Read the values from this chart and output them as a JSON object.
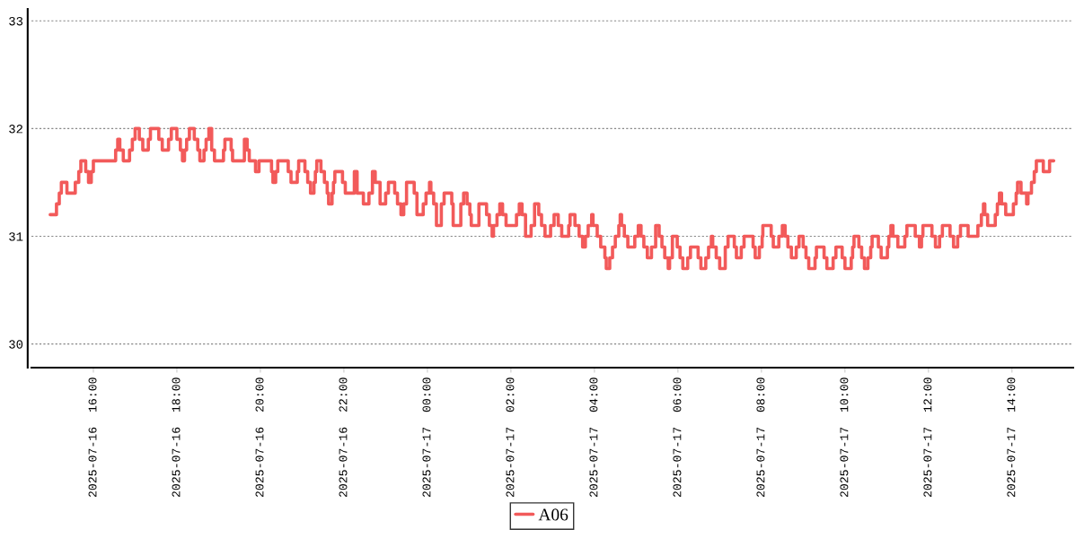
{
  "chart_data": {
    "type": "step",
    "xlim": [
      "2025-07-16T14:31",
      "2025-07-17T15:28"
    ],
    "ylim": [
      29.78,
      33.11
    ],
    "yticks": [
      30,
      31,
      32,
      33
    ],
    "xticks": [
      {
        "value": "2025-07-16T16:00",
        "label": "2025-07-16  16:00"
      },
      {
        "value": "2025-07-16T18:00",
        "label": "2025-07-16  18:00"
      },
      {
        "value": "2025-07-16T20:00",
        "label": "2025-07-16  20:00"
      },
      {
        "value": "2025-07-16T22:00",
        "label": "2025-07-16  22:00"
      },
      {
        "value": "2025-07-17T00:00",
        "label": "2025-07-17  00:00"
      },
      {
        "value": "2025-07-17T02:00",
        "label": "2025-07-17  02:00"
      },
      {
        "value": "2025-07-17T04:00",
        "label": "2025-07-17  04:00"
      },
      {
        "value": "2025-07-17T06:00",
        "label": "2025-07-17  06:00"
      },
      {
        "value": "2025-07-17T08:00",
        "label": "2025-07-17  08:00"
      },
      {
        "value": "2025-07-17T10:00",
        "label": "2025-07-17  10:00"
      },
      {
        "value": "2025-07-17T12:00",
        "label": "2025-07-17  12:00"
      },
      {
        "value": "2025-07-17T14:00",
        "label": "2025-07-17  14:00"
      }
    ],
    "grid": "y",
    "legend": "bottom",
    "marker": "none",
    "line_style": "solid",
    "series": [
      {
        "name": "A06",
        "color": "#f25a5a",
        "x": [
          "2025-07-16T14:58",
          "2025-07-16T15:07",
          "2025-07-16T15:11",
          "2025-07-16T15:14",
          "2025-07-16T15:22",
          "2025-07-16T15:34",
          "2025-07-16T15:39",
          "2025-07-16T15:42",
          "2025-07-16T15:49",
          "2025-07-16T15:53",
          "2025-07-16T15:57",
          "2025-07-16T16:00",
          "2025-07-16T16:32",
          "2025-07-16T16:35",
          "2025-07-16T16:38",
          "2025-07-16T16:43",
          "2025-07-16T16:52",
          "2025-07-16T16:56",
          "2025-07-16T17:00",
          "2025-07-16T17:06",
          "2025-07-16T17:11",
          "2025-07-16T17:19",
          "2025-07-16T17:22",
          "2025-07-16T17:34",
          "2025-07-16T17:39",
          "2025-07-16T17:48",
          "2025-07-16T17:52",
          "2025-07-16T18:00",
          "2025-07-16T18:05",
          "2025-07-16T18:08",
          "2025-07-16T18:11",
          "2025-07-16T18:14",
          "2025-07-16T18:18",
          "2025-07-16T18:25",
          "2025-07-16T18:30",
          "2025-07-16T18:33",
          "2025-07-16T18:39",
          "2025-07-16T18:42",
          "2025-07-16T18:46",
          "2025-07-16T18:50",
          "2025-07-16T18:54",
          "2025-07-16T19:07",
          "2025-07-16T19:09",
          "2025-07-16T19:18",
          "2025-07-16T19:20",
          "2025-07-16T19:37",
          "2025-07-16T19:41",
          "2025-07-16T19:44",
          "2025-07-16T19:53",
          "2025-07-16T19:58",
          "2025-07-16T20:16",
          "2025-07-16T20:18",
          "2025-07-16T20:22",
          "2025-07-16T20:25",
          "2025-07-16T20:40",
          "2025-07-16T20:44",
          "2025-07-16T20:53",
          "2025-07-16T20:55",
          "2025-07-16T21:04",
          "2025-07-16T21:08",
          "2025-07-16T21:12",
          "2025-07-16T21:17",
          "2025-07-16T21:19",
          "2025-07-16T21:21",
          "2025-07-16T21:27",
          "2025-07-16T21:32",
          "2025-07-16T21:36",
          "2025-07-16T21:38",
          "2025-07-16T21:43",
          "2025-07-16T21:45",
          "2025-07-16T21:47",
          "2025-07-16T21:58",
          "2025-07-16T22:02",
          "2025-07-16T22:15",
          "2025-07-16T22:19",
          "2025-07-16T22:28",
          "2025-07-16T22:36",
          "2025-07-16T22:41",
          "2025-07-16T22:45",
          "2025-07-16T22:52",
          "2025-07-16T23:00",
          "2025-07-16T23:04",
          "2025-07-16T23:13",
          "2025-07-16T23:17",
          "2025-07-16T23:22",
          "2025-07-16T23:26",
          "2025-07-16T23:30",
          "2025-07-16T23:41",
          "2025-07-16T23:45",
          "2025-07-16T23:54",
          "2025-07-16T23:58",
          "2025-07-17T00:03",
          "2025-07-17T00:05",
          "2025-07-17T00:09",
          "2025-07-17T00:13",
          "2025-07-17T00:20",
          "2025-07-17T00:24",
          "2025-07-17T00:35",
          "2025-07-17T00:37",
          "2025-07-17T00:48",
          "2025-07-17T00:52",
          "2025-07-17T00:57",
          "2025-07-17T01:01",
          "2025-07-17T01:03",
          "2025-07-17T01:14",
          "2025-07-17T01:25",
          "2025-07-17T01:29",
          "2025-07-17T01:33",
          "2025-07-17T01:35",
          "2025-07-17T01:40",
          "2025-07-17T01:44",
          "2025-07-17T01:48",
          "2025-07-17T01:53",
          "2025-07-17T02:08",
          "2025-07-17T02:12",
          "2025-07-17T02:16",
          "2025-07-17T02:21",
          "2025-07-17T02:29",
          "2025-07-17T02:34",
          "2025-07-17T02:40",
          "2025-07-17T02:44",
          "2025-07-17T02:49",
          "2025-07-17T02:57",
          "2025-07-17T03:02",
          "2025-07-17T03:08",
          "2025-07-17T03:13",
          "2025-07-17T03:23",
          "2025-07-17T03:25",
          "2025-07-17T03:32",
          "2025-07-17T03:38",
          "2025-07-17T03:43",
          "2025-07-17T03:47",
          "2025-07-17T03:51",
          "2025-07-17T03:56",
          "2025-07-17T03:58",
          "2025-07-17T04:04",
          "2025-07-17T04:09",
          "2025-07-17T04:15",
          "2025-07-17T04:17",
          "2025-07-17T04:22",
          "2025-07-17T04:26",
          "2025-07-17T04:30",
          "2025-07-17T04:35",
          "2025-07-17T04:37",
          "2025-07-17T04:39",
          "2025-07-17T04:43",
          "2025-07-17T04:48",
          "2025-07-17T04:58",
          "2025-07-17T05:03",
          "2025-07-17T05:07",
          "2025-07-17T05:11",
          "2025-07-17T05:16",
          "2025-07-17T05:22",
          "2025-07-17T05:28",
          "2025-07-17T05:33",
          "2025-07-17T05:37",
          "2025-07-17T05:41",
          "2025-07-17T05:46",
          "2025-07-17T05:48",
          "2025-07-17T05:52",
          "2025-07-17T05:59",
          "2025-07-17T06:03",
          "2025-07-17T06:07",
          "2025-07-17T06:14",
          "2025-07-17T06:18",
          "2025-07-17T06:29",
          "2025-07-17T06:33",
          "2025-07-17T06:40",
          "2025-07-17T06:44",
          "2025-07-17T06:48",
          "2025-07-17T06:50",
          "2025-07-17T06:55",
          "2025-07-17T07:00",
          "2025-07-17T07:08",
          "2025-07-17T07:12",
          "2025-07-17T07:21",
          "2025-07-17T07:24",
          "2025-07-17T07:31",
          "2025-07-17T07:35",
          "2025-07-17T07:48",
          "2025-07-17T07:51",
          "2025-07-17T07:57",
          "2025-07-17T08:01",
          "2025-07-17T08:02",
          "2025-07-17T08:14",
          "2025-07-17T08:17",
          "2025-07-17T08:25",
          "2025-07-17T08:30",
          "2025-07-17T08:34",
          "2025-07-17T08:38",
          "2025-07-17T08:43",
          "2025-07-17T08:50",
          "2025-07-17T08:54",
          "2025-07-17T09:00",
          "2025-07-17T09:04",
          "2025-07-17T09:08",
          "2025-07-17T09:17",
          "2025-07-17T09:19",
          "2025-07-17T09:30",
          "2025-07-17T09:34",
          "2025-07-17T09:43",
          "2025-07-17T09:47",
          "2025-07-17T09:56",
          "2025-07-17T10:00",
          "2025-07-17T10:09",
          "2025-07-17T10:11",
          "2025-07-17T10:13",
          "2025-07-17T10:20",
          "2025-07-17T10:24",
          "2025-07-17T10:28",
          "2025-07-17T10:33",
          "2025-07-17T10:37",
          "2025-07-17T10:39",
          "2025-07-17T10:48",
          "2025-07-17T10:52",
          "2025-07-17T11:01",
          "2025-07-17T11:03",
          "2025-07-17T11:06",
          "2025-07-17T11:09",
          "2025-07-17T11:16",
          "2025-07-17T11:26",
          "2025-07-17T11:29",
          "2025-07-17T11:41",
          "2025-07-17T11:47",
          "2025-07-17T11:50",
          "2025-07-17T11:52",
          "2025-07-17T12:05",
          "2025-07-17T12:10",
          "2025-07-17T12:16",
          "2025-07-17T12:20",
          "2025-07-17T12:31",
          "2025-07-17T12:36",
          "2025-07-17T12:42",
          "2025-07-17T12:46",
          "2025-07-17T12:57",
          "2025-07-17T13:11",
          "2025-07-17T13:16",
          "2025-07-17T13:19",
          "2025-07-17T13:21",
          "2025-07-17T13:25",
          "2025-07-17T13:36",
          "2025-07-17T13:39",
          "2025-07-17T13:42",
          "2025-07-17T13:45",
          "2025-07-17T13:51",
          "2025-07-17T14:02",
          "2025-07-17T14:06",
          "2025-07-17T14:08",
          "2025-07-17T14:13",
          "2025-07-17T14:21",
          "2025-07-17T14:23",
          "2025-07-17T14:28",
          "2025-07-17T14:32",
          "2025-07-17T14:35",
          "2025-07-17T14:45",
          "2025-07-17T14:54",
          "2025-07-17T15:00"
        ],
        "values": [
          31.2,
          31.3,
          31.4,
          31.5,
          31.4,
          31.5,
          31.6,
          31.7,
          31.6,
          31.5,
          31.6,
          31.7,
          31.8,
          31.9,
          31.8,
          31.7,
          31.8,
          31.9,
          32.0,
          31.9,
          31.8,
          31.9,
          32.0,
          31.9,
          31.8,
          31.9,
          32.0,
          31.9,
          31.8,
          31.7,
          31.8,
          31.9,
          32.0,
          31.9,
          31.8,
          31.7,
          31.8,
          31.9,
          32.0,
          31.8,
          31.7,
          31.8,
          31.9,
          31.8,
          31.7,
          31.9,
          31.8,
          31.7,
          31.6,
          31.7,
          31.6,
          31.5,
          31.6,
          31.7,
          31.6,
          31.5,
          31.6,
          31.7,
          31.6,
          31.5,
          31.4,
          31.5,
          31.6,
          31.7,
          31.6,
          31.5,
          31.4,
          31.3,
          31.4,
          31.5,
          31.6,
          31.5,
          31.4,
          31.6,
          31.4,
          31.3,
          31.4,
          31.6,
          31.5,
          31.3,
          31.4,
          31.5,
          31.4,
          31.3,
          31.2,
          31.3,
          31.5,
          31.4,
          31.2,
          31.3,
          31.4,
          31.5,
          31.4,
          31.3,
          31.1,
          31.3,
          31.4,
          31.3,
          31.1,
          31.3,
          31.4,
          31.3,
          31.2,
          31.1,
          31.3,
          31.2,
          31.1,
          31.0,
          31.1,
          31.2,
          31.3,
          31.2,
          31.1,
          31.2,
          31.3,
          31.2,
          31.0,
          31.1,
          31.3,
          31.2,
          31.1,
          31.0,
          31.1,
          31.2,
          31.1,
          31.0,
          31.1,
          31.2,
          31.1,
          31.0,
          30.9,
          31.0,
          31.1,
          31.2,
          31.1,
          31.0,
          30.9,
          30.8,
          30.7,
          30.8,
          30.9,
          31.0,
          31.1,
          31.2,
          31.1,
          31.0,
          30.9,
          31.0,
          31.1,
          31.0,
          30.9,
          30.8,
          30.9,
          31.1,
          31.0,
          30.9,
          30.8,
          30.7,
          30.8,
          31.0,
          30.9,
          30.8,
          30.7,
          30.8,
          30.9,
          30.8,
          30.7,
          30.8,
          30.9,
          31.0,
          30.9,
          30.8,
          30.7,
          30.9,
          31.0,
          30.9,
          30.8,
          30.9,
          31.0,
          30.9,
          30.8,
          30.9,
          31.0,
          31.1,
          31.0,
          30.9,
          31.0,
          31.1,
          31.0,
          30.9,
          30.8,
          30.9,
          31.0,
          30.9,
          30.8,
          30.7,
          30.8,
          30.9,
          30.8,
          30.7,
          30.8,
          30.9,
          30.8,
          30.7,
          30.8,
          30.9,
          31.0,
          30.9,
          30.8,
          30.7,
          30.8,
          30.9,
          31.0,
          30.9,
          30.8,
          30.9,
          31.0,
          31.1,
          31.0,
          30.9,
          31.0,
          31.1,
          31.0,
          30.9,
          31.0,
          31.1,
          31.0,
          30.9,
          31.0,
          31.1,
          31.0,
          30.9,
          31.0,
          31.1,
          31.0,
          31.1,
          31.2,
          31.3,
          31.2,
          31.1,
          31.2,
          31.3,
          31.4,
          31.3,
          31.2,
          31.3,
          31.4,
          31.5,
          31.4,
          31.3,
          31.4,
          31.5,
          31.6,
          31.7,
          31.6,
          31.7,
          31.7
        ]
      }
    ]
  }
}
